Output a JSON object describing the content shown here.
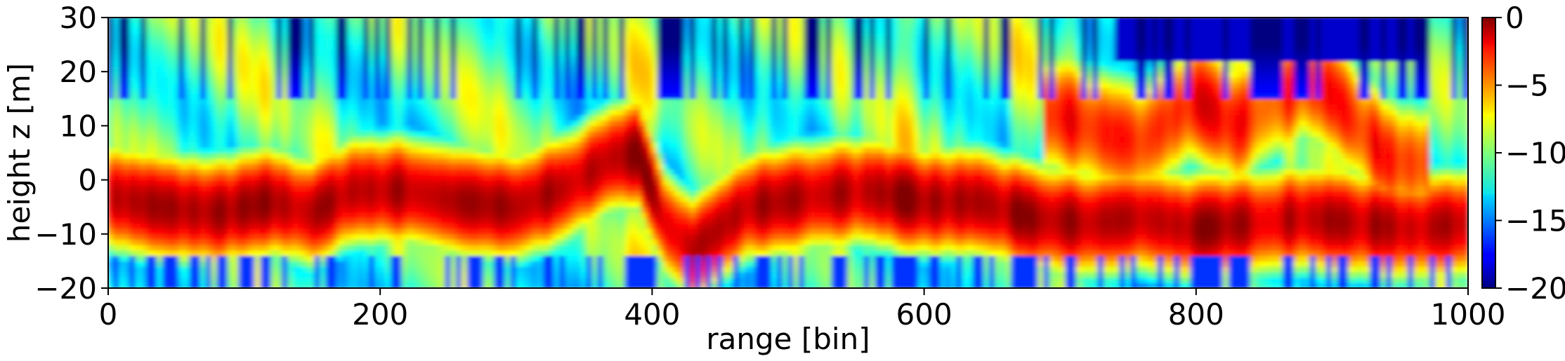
{
  "chart_data": {
    "type": "heatmap",
    "title": "",
    "xlabel": "range [bin]",
    "ylabel": "height z [m]",
    "xlim": [
      0,
      1000
    ],
    "ylim": [
      -20,
      30
    ],
    "x_ticks": [
      "0",
      "200",
      "400",
      "600",
      "800",
      "1000"
    ],
    "y_ticks": [
      "−20",
      "−10",
      "0",
      "10",
      "20",
      "30"
    ],
    "colorbar": {
      "range": [
        -20,
        0
      ],
      "ticks": [
        "−20",
        "−15",
        "−10",
        "−5",
        "0"
      ],
      "colormap": "jet"
    },
    "grid": false,
    "band_ridges": [
      {
        "x": 0,
        "z": -3
      },
      {
        "x": 40,
        "z": -5
      },
      {
        "x": 80,
        "z": -6
      },
      {
        "x": 120,
        "z": -4
      },
      {
        "x": 150,
        "z": -6
      },
      {
        "x": 180,
        "z": -2
      },
      {
        "x": 220,
        "z": -2
      },
      {
        "x": 260,
        "z": -4
      },
      {
        "x": 300,
        "z": -5
      },
      {
        "x": 340,
        "z": -1
      },
      {
        "x": 370,
        "z": 4
      },
      {
        "x": 390,
        "z": 5
      },
      {
        "x": 410,
        "z": -8
      },
      {
        "x": 430,
        "z": -13
      },
      {
        "x": 470,
        "z": -5
      },
      {
        "x": 520,
        "z": -3
      },
      {
        "x": 560,
        "z": -2
      },
      {
        "x": 600,
        "z": -4
      },
      {
        "x": 640,
        "z": -4
      },
      {
        "x": 680,
        "z": -7
      },
      {
        "x": 720,
        "z": -8
      },
      {
        "x": 760,
        "z": -7
      },
      {
        "x": 800,
        "z": -9
      },
      {
        "x": 840,
        "z": -8
      },
      {
        "x": 880,
        "z": -7
      },
      {
        "x": 920,
        "z": -8
      },
      {
        "x": 960,
        "z": -9
      },
      {
        "x": 1000,
        "z": -8
      }
    ],
    "upper_ridges": [
      {
        "x": 700,
        "z": 12
      },
      {
        "x": 740,
        "z": 8
      },
      {
        "x": 760,
        "z": 7
      },
      {
        "x": 800,
        "z": 15
      },
      {
        "x": 830,
        "z": 10
      },
      {
        "x": 880,
        "z": 18
      },
      {
        "x": 900,
        "z": 16
      },
      {
        "x": 940,
        "z": 4
      },
      {
        "x": 960,
        "z": 3
      }
    ]
  }
}
